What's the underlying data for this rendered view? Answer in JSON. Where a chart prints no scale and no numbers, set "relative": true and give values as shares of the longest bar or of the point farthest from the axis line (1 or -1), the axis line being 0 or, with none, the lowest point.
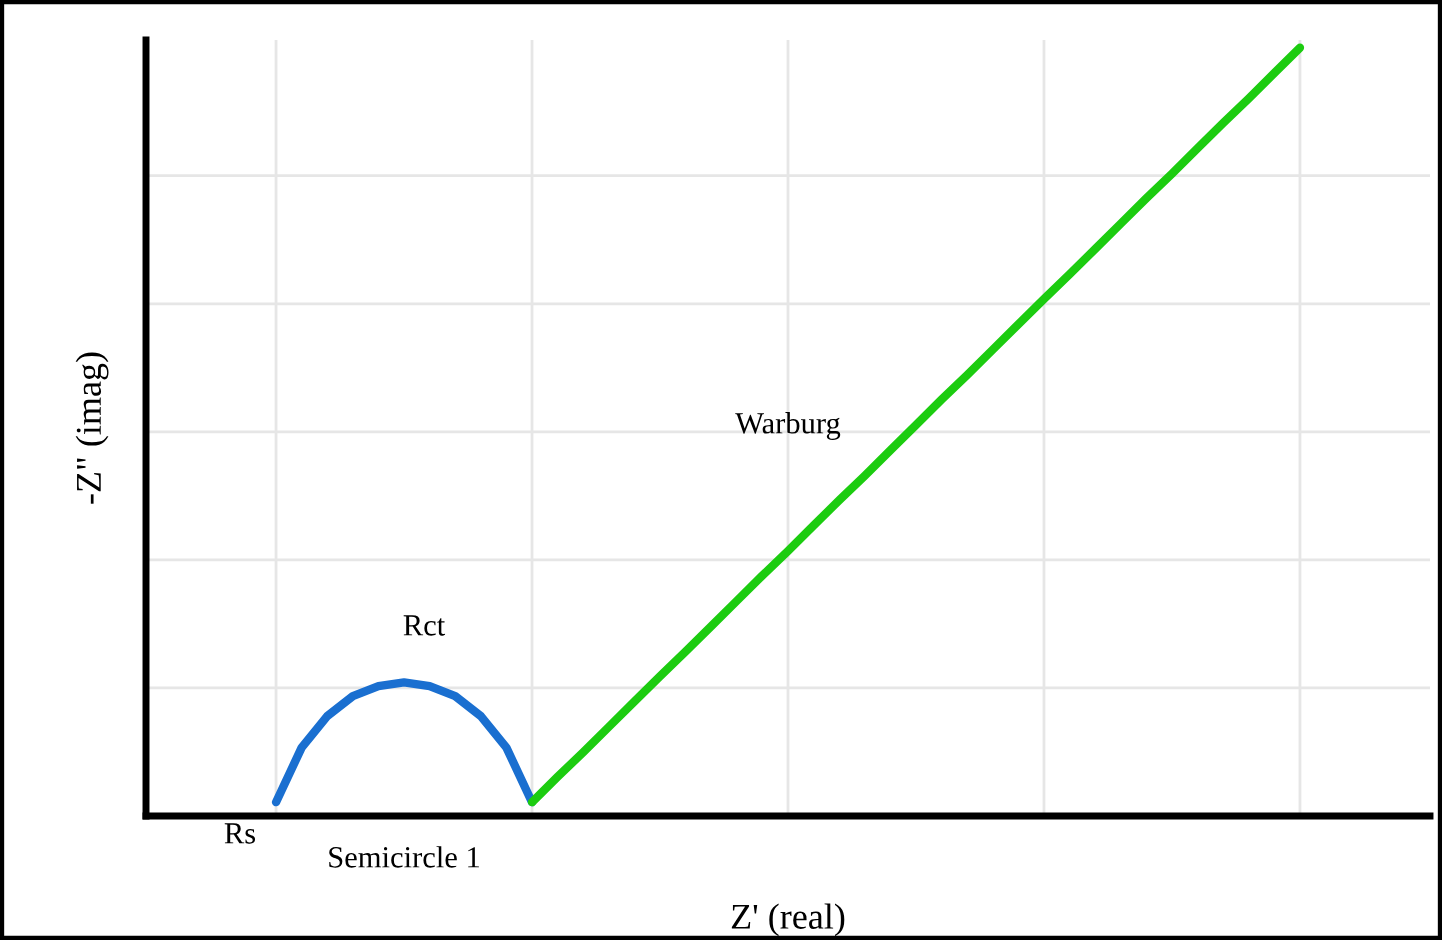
{
  "chart_data": {
    "type": "line",
    "relative": true,
    "xlabel": "Z' (real)",
    "ylabel": "-Z\" (imag)",
    "grid": true,
    "legend": false,
    "marker": "none",
    "line_style": "solid",
    "categories": [
      null,
      null,
      null,
      null,
      null,
      null,
      null,
      null,
      null,
      null,
      null,
      null,
      null,
      null,
      null,
      null,
      null,
      null,
      null,
      null,
      null,
      null,
      null,
      null,
      null,
      null,
      null,
      null,
      null,
      null,
      null,
      null,
      null,
      null,
      null,
      null,
      null,
      null,
      null,
      null,
      null
    ],
    "series": [
      {
        "color": "#1a6fd0",
        "values": [
          0.018,
          0.089,
          0.13,
          0.156,
          0.169,
          0.174,
          0.169,
          0.156,
          0.13,
          0.089,
          0.018,
          null,
          null,
          null,
          null,
          null,
          null,
          null,
          null,
          null,
          null,
          null,
          null,
          null,
          null,
          null,
          null,
          null,
          null,
          null,
          null,
          null,
          null,
          null,
          null,
          null,
          null,
          null,
          null,
          null,
          null
        ]
      },
      {
        "color": "#1ccc10",
        "values": [
          null,
          null,
          null,
          null,
          null,
          null,
          null,
          null,
          null,
          null,
          0.018,
          0.051,
          0.083,
          0.116,
          0.149,
          0.182,
          0.214,
          0.247,
          0.28,
          0.313,
          0.345,
          0.378,
          0.411,
          0.443,
          0.476,
          0.509,
          0.542,
          0.574,
          0.607,
          0.64,
          0.673,
          0.705,
          0.738,
          0.771,
          0.804,
          0.836,
          0.869,
          0.902,
          0.934,
          0.967,
          1.0
        ]
      }
    ],
    "annotations": [
      "Rs",
      "Semicircle 1",
      "Rct",
      "Warburg"
    ]
  }
}
